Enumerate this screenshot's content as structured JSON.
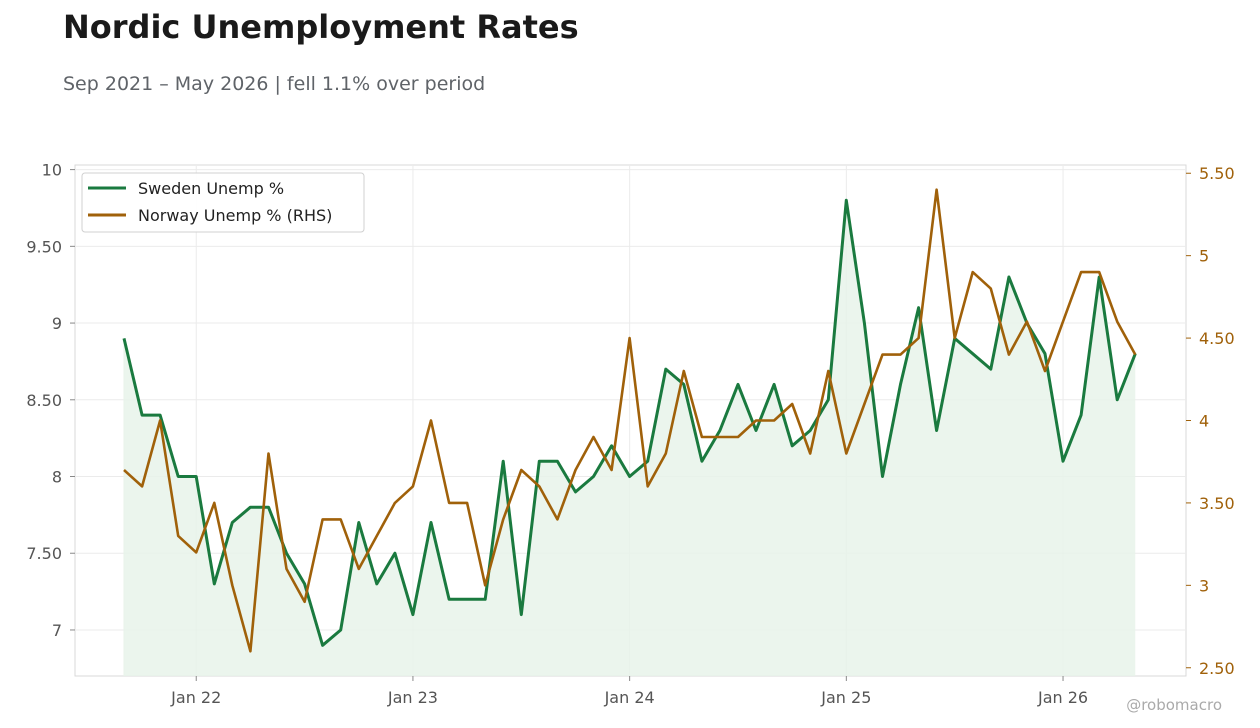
{
  "title": "Nordic Unemployment Rates",
  "subtitle": "Sep 2021 – May 2026 | fell 1.1% over period",
  "watermark": "@robomacro",
  "colors": {
    "left": "#1a7a3f",
    "right": "#a0610a",
    "fill": "#e8f3ea",
    "grid": "#ebebeb",
    "axis_text": "#555555"
  },
  "chart_data": {
    "type": "line",
    "x_start": "2021-09",
    "x_ticks": [
      "Jan 22",
      "Jan 23",
      "Jan 24",
      "Jan 25",
      "Jan 26"
    ],
    "grid": true,
    "legend_position": "top-left",
    "left_axis": {
      "ylim": [
        6.7,
        10.03
      ],
      "ticks": [
        "7",
        "7.50",
        "8",
        "8.50",
        "9",
        "9.50",
        "10"
      ]
    },
    "right_axis": {
      "ylim": [
        2.45,
        5.55
      ],
      "ticks": [
        "2.50",
        "3",
        "3.50",
        "4",
        "4.50",
        "5",
        "5.50"
      ]
    },
    "series": [
      {
        "name": "Sweden Unemp %",
        "axis": "left",
        "filled": true,
        "values": [
          8.9,
          8.4,
          8.4,
          8.0,
          8.0,
          7.3,
          7.7,
          7.8,
          7.8,
          7.5,
          7.3,
          6.9,
          7.0,
          7.7,
          7.3,
          7.5,
          7.1,
          7.7,
          7.2,
          7.2,
          7.2,
          8.1,
          7.1,
          8.1,
          8.1,
          7.9,
          8.0,
          8.2,
          8.0,
          8.1,
          8.7,
          8.6,
          8.1,
          8.3,
          8.6,
          8.3,
          8.6,
          8.2,
          8.3,
          8.5,
          9.8,
          9.0,
          8.0,
          8.6,
          9.1,
          8.3,
          8.9,
          8.8,
          8.7,
          9.3,
          9.0,
          8.8,
          8.1,
          8.4,
          9.3,
          8.5,
          8.8
        ]
      },
      {
        "name": "Norway Unemp % (RHS)",
        "axis": "right",
        "filled": false,
        "values": [
          3.7,
          3.6,
          4.0,
          3.3,
          3.2,
          3.5,
          3.0,
          2.6,
          3.8,
          3.1,
          2.9,
          3.4,
          3.4,
          3.1,
          3.3,
          3.5,
          3.6,
          4.0,
          3.5,
          3.5,
          3.0,
          3.4,
          3.7,
          3.6,
          3.4,
          3.7,
          3.9,
          3.7,
          4.5,
          3.6,
          3.8,
          4.3,
          3.9,
          3.9,
          3.9,
          4.0,
          4.0,
          4.1,
          3.8,
          4.3,
          3.8,
          4.1,
          4.4,
          4.4,
          4.5,
          5.4,
          4.5,
          4.9,
          4.8,
          4.4,
          4.6,
          4.3,
          4.6,
          4.9,
          4.9,
          4.6,
          4.4
        ]
      }
    ]
  }
}
